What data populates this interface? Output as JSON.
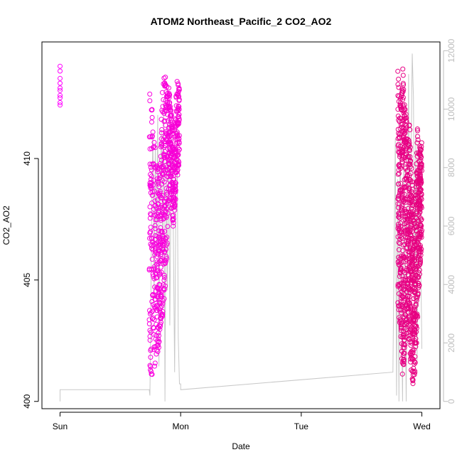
{
  "chart_data": {
    "type": "scatter",
    "title": "ATOM2 Northeast_Pacific_2 CO2_AO2",
    "xlabel": "Date",
    "ylabel": "CO2_AO2",
    "y2label": "",
    "x_ticks": [
      "Sun",
      "Mon",
      "Tue",
      "Wed"
    ],
    "x_tick_values": [
      0,
      1,
      2,
      3
    ],
    "x_range": [
      -0.15,
      3.15
    ],
    "y_ticks": [
      400,
      405,
      410
    ],
    "ylim": [
      399.7,
      414.8
    ],
    "y2_ticks": [
      0,
      2000,
      4000,
      6000,
      8000,
      10000,
      12000
    ],
    "y2lim": [
      -250,
      12300
    ],
    "grid": false,
    "legend": "none",
    "colors": {
      "co2_low": "#e6007e",
      "co2_high": "#ff00ff",
      "altitude": "#c8c8c8",
      "right_axis": "#bdbdbd"
    },
    "series": [
      {
        "kind": "points",
        "segments": [
          {
            "x": [
              0.0,
              0.0,
              0.0,
              0.0,
              0.0,
              0.0,
              0.0,
              0.0,
              0.0,
              0.0
            ],
            "y": [
              413.8,
              413.6,
              413.3,
              413.1,
              412.9,
              412.8,
              412.6,
              412.5,
              412.3,
              412.2
            ]
          },
          {
            "x_min": 0.74,
            "x_max": 0.99,
            "n": 700,
            "seed": 11,
            "profile": [
              [
                0.74,
                401.2,
                412.8
              ],
              [
                0.78,
                401.0,
                411.5
              ],
              [
                0.82,
                402.0,
                409.0
              ],
              [
                0.85,
                403.5,
                413.0
              ],
              [
                0.88,
                405.0,
                413.8
              ],
              [
                0.91,
                408.5,
                412.6
              ],
              [
                0.94,
                407.0,
                411.0
              ],
              [
                0.97,
                409.0,
                413.2
              ],
              [
                0.99,
                410.0,
                413.0
              ]
            ]
          },
          {
            "x_min": 2.8,
            "x_max": 3.0,
            "n": 900,
            "seed": 29,
            "profile": [
              [
                2.8,
                404.0,
                413.8
              ],
              [
                2.82,
                403.0,
                412.5
              ],
              [
                2.84,
                401.0,
                413.8
              ],
              [
                2.86,
                402.0,
                412.5
              ],
              [
                2.88,
                403.5,
                411.2
              ],
              [
                2.9,
                402.0,
                411.5
              ],
              [
                2.92,
                400.5,
                409.0
              ],
              [
                2.94,
                401.0,
                407.0
              ],
              [
                2.96,
                402.5,
                411.5
              ],
              [
                2.98,
                405.0,
                410.5
              ],
              [
                3.0,
                406.5,
                410.8
              ]
            ]
          }
        ]
      },
      {
        "kind": "line",
        "axis": "right",
        "x": [
          0.0,
          0.0,
          0.0,
          0.74,
          0.745,
          0.75,
          0.76,
          0.77,
          0.78,
          0.79,
          0.8,
          0.81,
          0.82,
          0.83,
          0.84,
          0.85,
          0.86,
          0.87,
          0.88,
          0.89,
          0.9,
          0.91,
          0.92,
          0.93,
          0.94,
          0.95,
          0.96,
          0.97,
          0.98,
          0.99,
          1.0,
          1.0,
          2.76,
          2.77,
          2.78,
          2.79,
          2.8,
          2.81,
          2.82,
          2.83,
          2.84,
          2.85,
          2.86,
          2.87,
          2.88,
          2.89,
          2.9,
          2.91,
          2.92,
          2.93,
          2.94,
          2.95,
          2.96,
          2.97,
          2.98,
          2.99,
          3.0
        ],
        "y": [
          0,
          400,
          400,
          400,
          200,
          1800,
          6500,
          9200,
          3500,
          8800,
          5200,
          9800,
          1200,
          7200,
          9300,
          4600,
          10200,
          0,
          8200,
          3800,
          9600,
          2600,
          7400,
          9000,
          5400,
          1000,
          6800,
          9400,
          2200,
          600,
          600,
          400,
          1000,
          5200,
          9000,
          200,
          7600,
          0,
          9800,
          3400,
          0,
          8600,
          4200,
          0,
          6600,
          11200,
          2800,
          8400,
          11900,
          10400,
          3600,
          9200,
          1400,
          7600,
          8600,
          5200,
          1800
        ]
      }
    ]
  }
}
